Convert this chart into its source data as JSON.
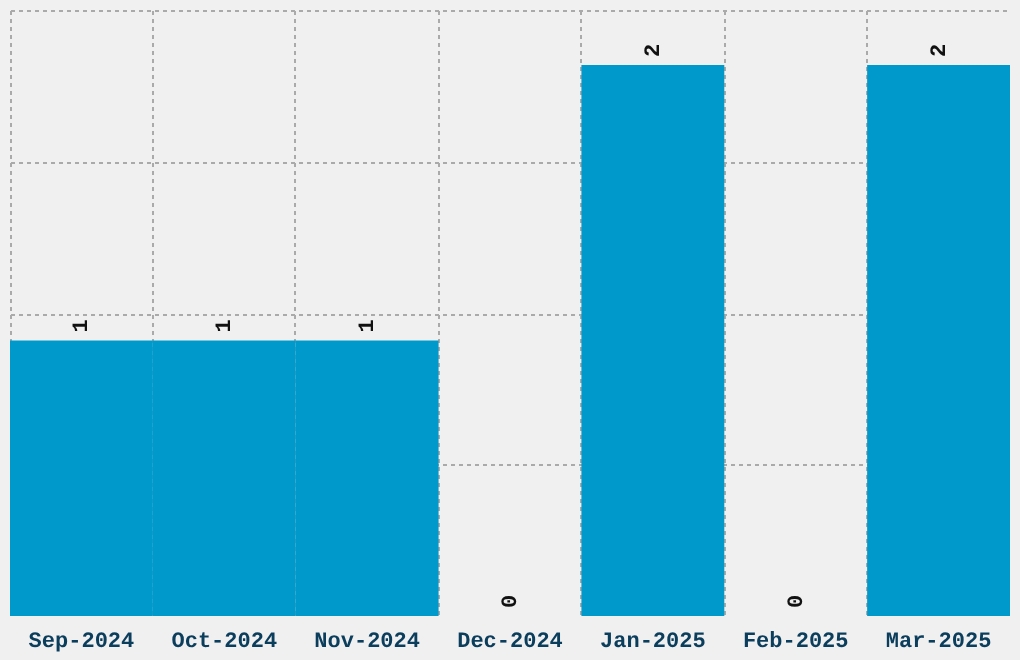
{
  "chart_data": {
    "type": "bar",
    "categories": [
      "Sep-2024",
      "Oct-2024",
      "Nov-2024",
      "Dec-2024",
      "Jan-2025",
      "Feb-2025",
      "Mar-2025"
    ],
    "values": [
      1,
      1,
      1,
      0,
      2,
      0,
      2
    ],
    "color": "#0099cc",
    "ylim": [
      0,
      2.2
    ],
    "yticks": [
      {
        "value": 0.55,
        "label": null
      },
      {
        "value": 1.1,
        "label": null
      },
      {
        "value": 1.65,
        "label": null
      },
      {
        "value": 2.2,
        "label": null
      }
    ],
    "tick_labels": "x",
    "grid": true,
    "data_labels": true
  }
}
